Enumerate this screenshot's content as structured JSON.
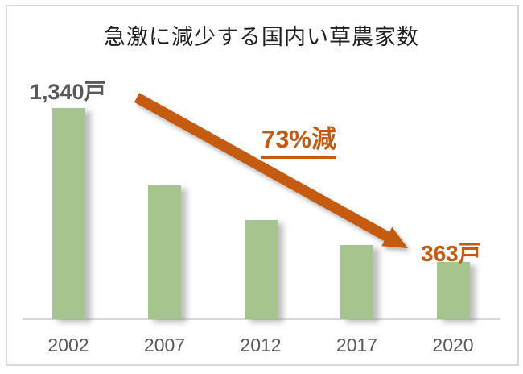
{
  "title": "急激に減少する国内い草農家数",
  "colors": {
    "bar_green": "#a5c48e",
    "accent_orange": "#c55a11",
    "label_gray": "#595959",
    "line_gray": "#d9d9d9",
    "title_black": "#1f1f1f"
  },
  "annotations": {
    "start_label": "1,340戸",
    "decrease_label": "73%減",
    "end_label": "363戸"
  },
  "chart_data": {
    "type": "bar",
    "title": "急激に減少する国内い草農家数",
    "categories": [
      "2002",
      "2007",
      "2012",
      "2017",
      "2020"
    ],
    "values": [
      1340,
      850,
      630,
      470,
      363
    ],
    "labeled_points": {
      "2002": "1,340戸",
      "2020": "363戸"
    },
    "percent_change_note": "73%減",
    "xlabel": "",
    "ylabel": "",
    "ylim": [
      0,
      1400
    ],
    "grid": false,
    "legend": false,
    "bar_color": "#a5c48e",
    "annotation_arrow": {
      "from_category": "2002",
      "to_category": "2020",
      "color": "#c55a11"
    }
  }
}
